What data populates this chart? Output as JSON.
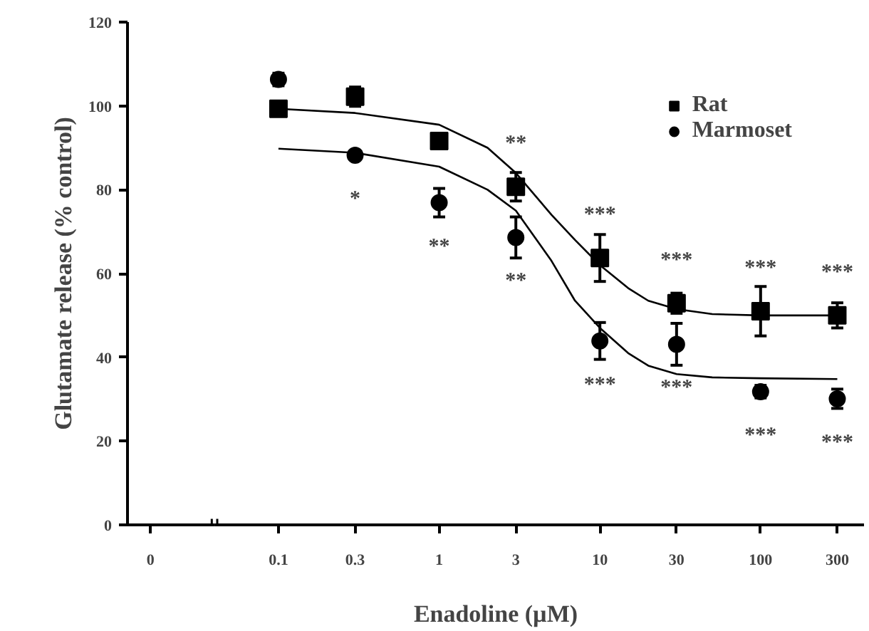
{
  "chart_data": {
    "type": "scatter",
    "xlabel": "Enadoline (µM)",
    "ylabel": "Glutamate release (% control)",
    "log": "x",
    "xlim": [
      0.0115,
      440
    ],
    "xticks": [
      {
        "value": 0.016,
        "label": "0"
      },
      0.1,
      0.3,
      1,
      3,
      10,
      30,
      100,
      300
    ],
    "ylim": [
      0,
      120
    ],
    "yticks": [
      0,
      20,
      40,
      60,
      80,
      100,
      120
    ],
    "grid": false,
    "legend": "top right",
    "series": [
      {
        "name": "Rat",
        "color": "#000000",
        "marker": "square",
        "x": [
          0.1,
          0.3,
          1,
          3,
          10,
          30,
          100,
          300
        ],
        "values": [
          99.3,
          102.2,
          91.6,
          80.7,
          63.7,
          52.9,
          51.0,
          50.0
        ],
        "errors": [
          1.5,
          2.3,
          1,
          3.4,
          5.6,
          2.4,
          5.9,
          3
        ]
      },
      {
        "name": "Marmoset",
        "color": "#000000",
        "marker": "circle",
        "x": [
          0.1,
          0.3,
          1,
          3,
          10,
          30,
          100,
          300
        ],
        "values": [
          106.3,
          88.2,
          76.9,
          68.6,
          43.9,
          43.1,
          31.8,
          30.1
        ],
        "errors": [
          1.5,
          1,
          3.4,
          4.9,
          4.4,
          5,
          1.5,
          2.3
        ]
      },
      {
        "type": "line",
        "color": "#000000",
        "x": [
          0.1,
          0.3,
          1,
          2,
          3,
          5,
          7,
          10,
          15,
          20,
          30,
          50,
          100,
          300
        ],
        "values": [
          99.3,
          98.3,
          95.5,
          90,
          84,
          74,
          68,
          62,
          56.5,
          53.5,
          51.5,
          50.3,
          50,
          50
        ]
      },
      {
        "type": "line",
        "color": "#000000",
        "x": [
          0.1,
          0.3,
          1,
          2,
          3,
          5,
          7,
          10,
          15,
          20,
          30,
          50,
          100,
          300
        ],
        "values": [
          89.8,
          88.8,
          85.5,
          80,
          75,
          63,
          53.5,
          47,
          41,
          38,
          36,
          35.2,
          35,
          34.8
        ]
      }
    ],
    "annotations": [
      {
        "text": "*",
        "x": 0.3,
        "y": 88.2
      },
      {
        "text": "**",
        "x": 1,
        "y": 76.9
      },
      {
        "text": "**",
        "x": 3,
        "y": 80.7
      },
      {
        "text": "**",
        "x": 3,
        "y": 68.6
      },
      {
        "text": "***",
        "x": 10,
        "y": 63.7
      },
      {
        "text": "***",
        "x": 10,
        "y": 43.9
      },
      {
        "text": "***",
        "x": 30,
        "y": 52.9
      },
      {
        "text": "***",
        "x": 30,
        "y": 43.1
      },
      {
        "text": "***",
        "x": 100,
        "y": 51.0
      },
      {
        "text": "***",
        "x": 100,
        "y": 31.8
      },
      {
        "text": "***",
        "x": 300,
        "y": 50.0
      },
      {
        "text": "***",
        "x": 300,
        "y": 30.1
      }
    ]
  }
}
